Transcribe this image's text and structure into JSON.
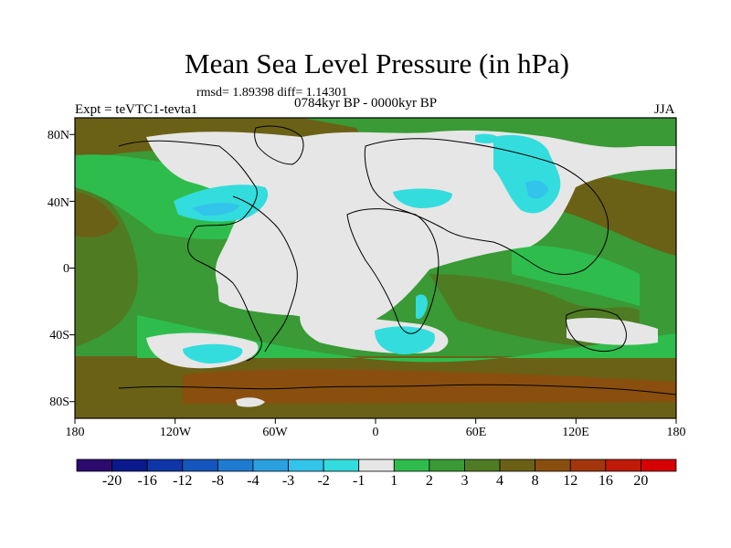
{
  "title": "Mean Sea Level Pressure (in hPa)",
  "stats_line": "rmsd= 1.89398 diff= 1.14301",
  "period": "0784kyr BP - 0000kyr BP",
  "experiment": "Expt = teVTC1-tevta1",
  "season": "JJA",
  "latitude_labels": [
    "80N",
    "40N",
    "0",
    "40S",
    "80S"
  ],
  "longitude_labels": [
    "180",
    "120W",
    "60W",
    "0",
    "60E",
    "120E",
    "180"
  ],
  "colorbar": {
    "colors": [
      "#2c0a6e",
      "#0a1a8c",
      "#0f36a8",
      "#1456bd",
      "#1f7bd0",
      "#2aa0e0",
      "#32c4ea",
      "#33dddd",
      "#e6e6e6",
      "#2ebd4d",
      "#3a9a36",
      "#4f7c23",
      "#6a6116",
      "#8a4f0e",
      "#a3360c",
      "#c01a08",
      "#d60000"
    ],
    "tick_labels": [
      "-20",
      "-16",
      "-12",
      "-8",
      "-4",
      "-3",
      "-2",
      "-1",
      "1",
      "2",
      "3",
      "4",
      "8",
      "12",
      "16",
      "20"
    ]
  },
  "legend_colors": {
    "land_ocean_base": "#3a9a36",
    "strong_positive": "#6a6116",
    "moderate_positive": "#4f7c23",
    "weak_positive": "#2ebd4d",
    "near_zero": "#e6e6e6",
    "weak_negative": "#33dddd",
    "negative": "#32c4ea",
    "strong_negative": "#2aa0e0",
    "high_positive": "#8a4f0e",
    "coastline": "#000000"
  }
}
